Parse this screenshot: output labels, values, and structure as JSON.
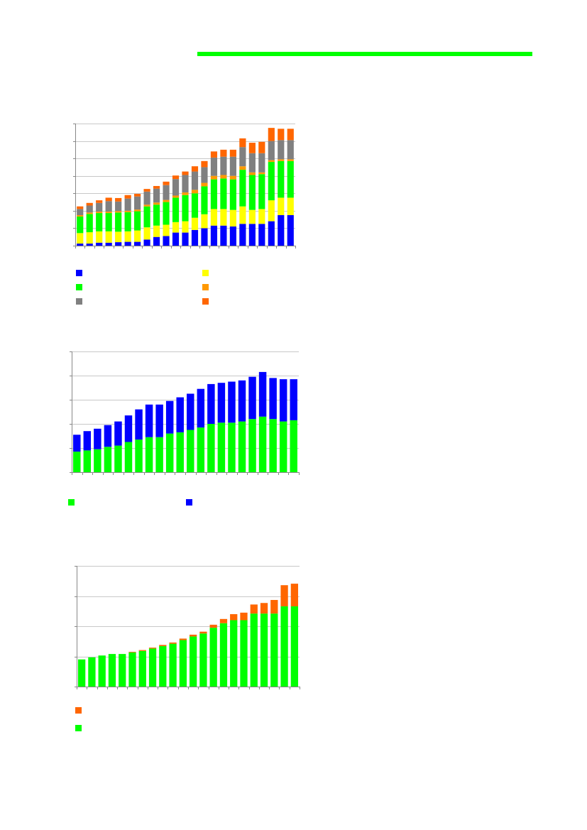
{
  "header": {
    "rule_color": "#00ff00"
  },
  "chart_data": [
    {
      "type": "bar",
      "stacked": true,
      "grid": true,
      "legend_position": "bottom",
      "categories": [
        "",
        "",
        "",
        "",
        "",
        "",
        "",
        "",
        "",
        "",
        "",
        "",
        "",
        "",
        "",
        "",
        "",
        "",
        "",
        "",
        "",
        "",
        ""
      ],
      "ylim": [
        0,
        7
      ],
      "series": [
        {
          "color": "#0000ff",
          "values": [
            0.12,
            0.12,
            0.17,
            0.17,
            0.2,
            0.22,
            0.22,
            0.35,
            0.5,
            0.55,
            0.75,
            0.75,
            0.9,
            1.0,
            1.15,
            1.15,
            1.1,
            1.25,
            1.25,
            1.25,
            1.4,
            1.75,
            1.75
          ]
        },
        {
          "color": "#ffff00",
          "values": [
            0.6,
            0.65,
            0.65,
            0.65,
            0.6,
            0.6,
            0.65,
            0.7,
            0.65,
            0.65,
            0.6,
            0.65,
            0.7,
            0.8,
            0.95,
            0.95,
            0.95,
            1.0,
            0.8,
            0.85,
            1.2,
            1.0,
            1.0
          ]
        },
        {
          "color": "#00ff00",
          "values": [
            0.95,
            1.05,
            1.05,
            1.05,
            1.1,
            1.1,
            1.1,
            1.2,
            1.2,
            1.3,
            1.4,
            1.5,
            1.4,
            1.6,
            1.7,
            1.75,
            1.75,
            2.1,
            2.0,
            2.0,
            2.2,
            2.1,
            2.1
          ]
        },
        {
          "color": "#ff9900",
          "values": [
            0.08,
            0.08,
            0.08,
            0.08,
            0.08,
            0.08,
            0.1,
            0.1,
            0.12,
            0.12,
            0.12,
            0.15,
            0.2,
            0.2,
            0.2,
            0.2,
            0.2,
            0.2,
            0.15,
            0.1,
            0.1,
            0.1,
            0.1
          ]
        },
        {
          "color": "#808080",
          "values": [
            0.35,
            0.4,
            0.5,
            0.6,
            0.55,
            0.7,
            0.75,
            0.75,
            0.8,
            0.85,
            0.95,
            1.0,
            1.05,
            0.9,
            1.05,
            1.05,
            1.1,
            1.1,
            1.1,
            1.1,
            1.1,
            1.1,
            1.1
          ]
        },
        {
          "color": "#ff6600",
          "values": [
            0.15,
            0.15,
            0.15,
            0.2,
            0.2,
            0.2,
            0.15,
            0.15,
            0.15,
            0.2,
            0.2,
            0.2,
            0.3,
            0.35,
            0.35,
            0.4,
            0.4,
            0.5,
            0.6,
            0.65,
            0.75,
            0.65,
            0.65
          ]
        }
      ]
    },
    {
      "type": "bar",
      "stacked": true,
      "grid": true,
      "legend_position": "bottom",
      "categories": [
        "",
        "",
        "",
        "",
        "",
        "",
        "",
        "",
        "",
        "",
        "",
        "",
        "",
        "",
        "",
        "",
        "",
        "",
        "",
        "",
        "",
        ""
      ],
      "ylim": [
        0,
        5
      ],
      "series": [
        {
          "color": "#00ff00",
          "values": [
            0.85,
            0.9,
            0.95,
            1.05,
            1.1,
            1.25,
            1.35,
            1.45,
            1.45,
            1.6,
            1.65,
            1.75,
            1.85,
            2.0,
            2.05,
            2.05,
            2.1,
            2.2,
            2.3,
            2.2,
            2.1,
            2.15
          ]
        },
        {
          "color": "#0000ff",
          "values": [
            0.7,
            0.8,
            0.85,
            0.9,
            1.0,
            1.1,
            1.25,
            1.35,
            1.35,
            1.35,
            1.45,
            1.5,
            1.6,
            1.65,
            1.65,
            1.7,
            1.7,
            1.75,
            1.85,
            1.7,
            1.75,
            1.7
          ]
        }
      ]
    },
    {
      "type": "bar",
      "stacked": true,
      "grid": true,
      "legend_position": "bottom",
      "categories": [
        "",
        "",
        "",
        "",
        "",
        "",
        "",
        "",
        "",
        "",
        "",
        "",
        "",
        "",
        "",
        "",
        "",
        "",
        "",
        "",
        "",
        ""
      ],
      "ylim": [
        0,
        4
      ],
      "series": [
        {
          "color": "#00ff00",
          "values": [
            0.9,
            0.97,
            1.03,
            1.08,
            1.08,
            1.13,
            1.18,
            1.26,
            1.34,
            1.42,
            1.54,
            1.66,
            1.76,
            1.95,
            2.1,
            2.2,
            2.2,
            2.42,
            2.42,
            2.42,
            2.66,
            2.66
          ]
        },
        {
          "color": "#ff6600",
          "values": [
            0,
            0,
            0,
            0,
            0,
            0.02,
            0.03,
            0.03,
            0.04,
            0.04,
            0.05,
            0.06,
            0.06,
            0.1,
            0.14,
            0.2,
            0.25,
            0.3,
            0.35,
            0.45,
            0.7,
            0.75
          ]
        }
      ]
    }
  ]
}
